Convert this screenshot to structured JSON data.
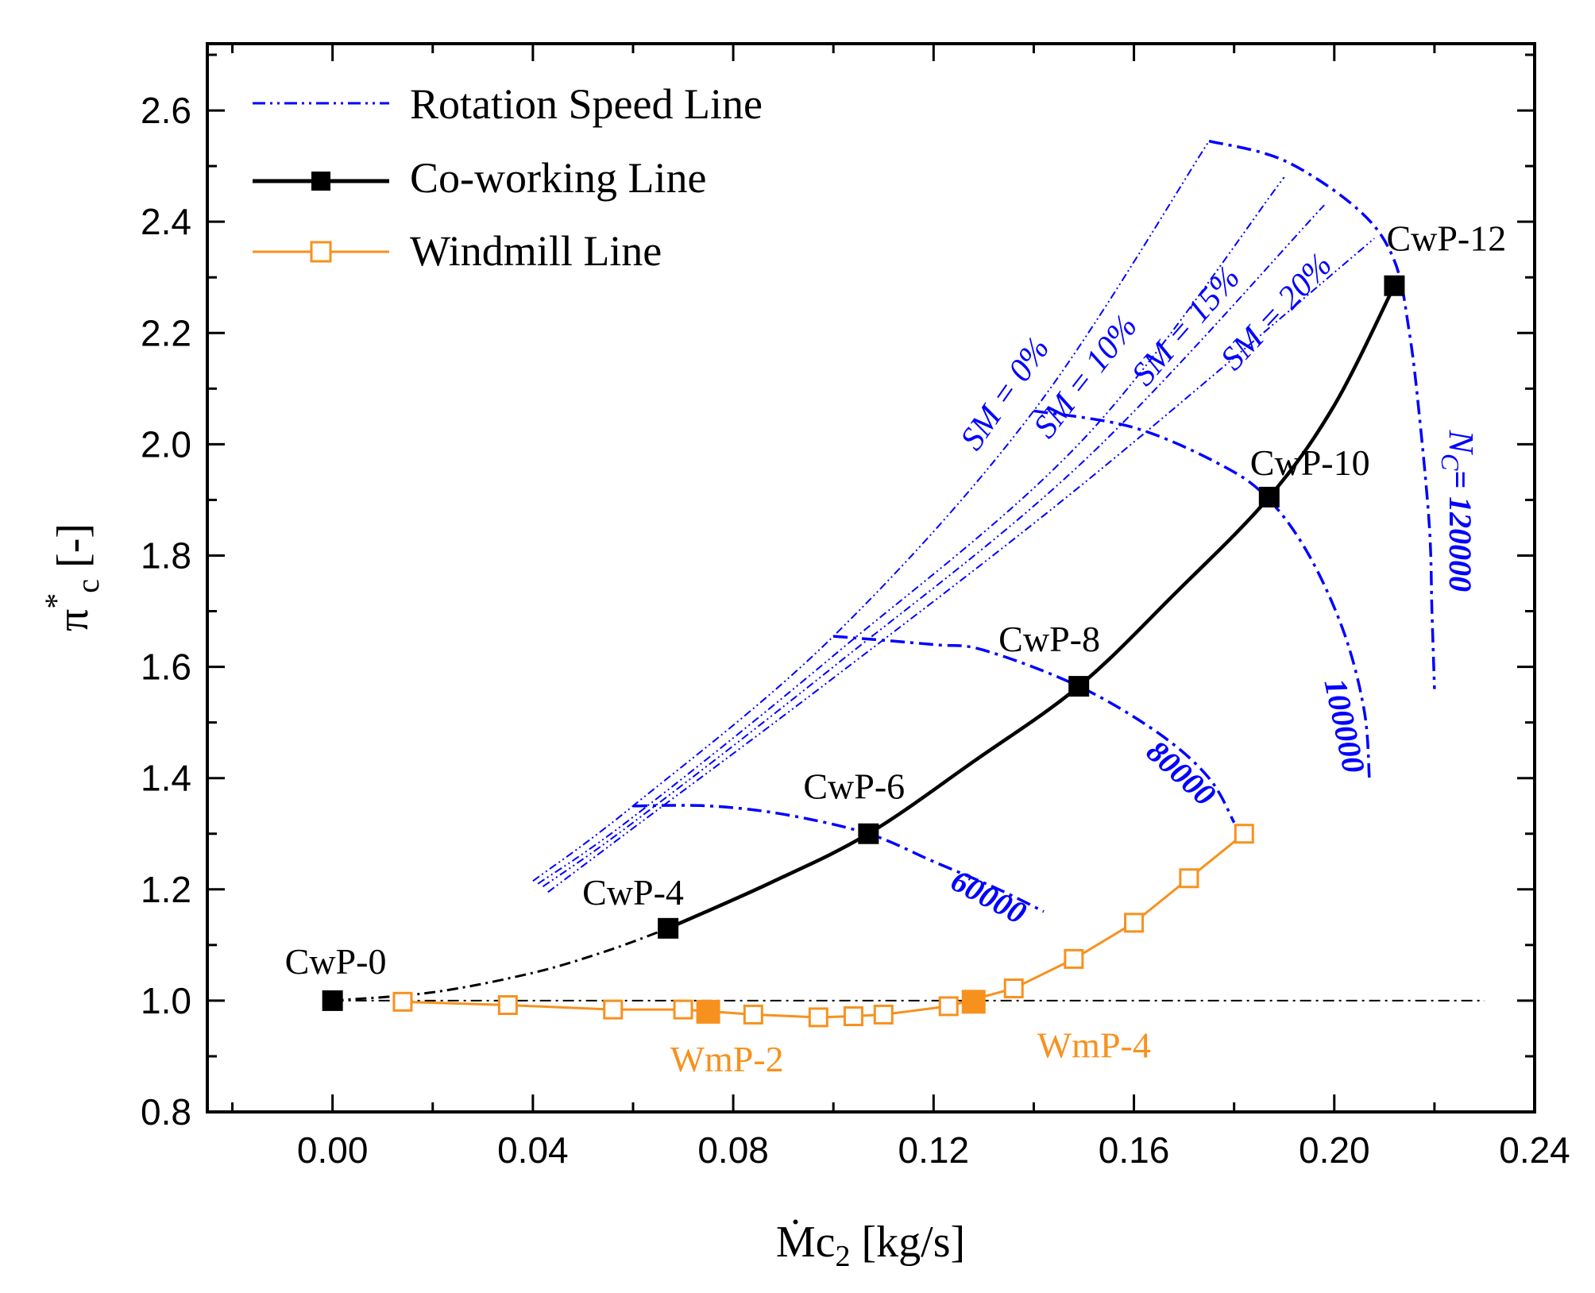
{
  "chart_data": {
    "type": "line",
    "xlabel_main": "Ṁc",
    "xlabel_sub": "2",
    "xlabel_unit": " [kg/s]",
    "ylabel_main": "π",
    "ylabel_sup": "*",
    "ylabel_sub": "c",
    "ylabel_unit": " [-]",
    "xlim": [
      -0.025,
      0.24
    ],
    "ylim": [
      0.8,
      2.72
    ],
    "x_ticks": [
      0.0,
      0.04,
      0.08,
      0.12,
      0.16,
      0.2,
      0.24
    ],
    "x_tick_labels": [
      "0.00",
      "0.04",
      "0.08",
      "0.12",
      "0.16",
      "0.20",
      "0.24"
    ],
    "y_ticks": [
      0.8,
      1.0,
      1.2,
      1.4,
      1.6,
      1.8,
      2.0,
      2.2,
      2.4,
      2.6
    ],
    "y_tick_labels": [
      "0.8",
      "1.0",
      "1.2",
      "1.4",
      "1.6",
      "1.8",
      "2.0",
      "2.2",
      "2.4",
      "2.6"
    ],
    "legend": [
      {
        "label": "Rotation Speed Line",
        "style": "speed"
      },
      {
        "label": "Co-working Line",
        "style": "cowork"
      },
      {
        "label": "Windmill Line",
        "style": "windmill"
      }
    ],
    "colors": {
      "speed": "#0000ff",
      "cowork": "#000000",
      "windmill": "#f7911e"
    },
    "reference_line_y": 1.0,
    "reference_line_x": [
      0.0,
      0.23
    ],
    "speed_lines": [
      {
        "label": "60000",
        "points": [
          [
            0.06,
            1.35
          ],
          [
            0.075,
            1.35
          ],
          [
            0.09,
            1.335
          ],
          [
            0.107,
            1.3
          ],
          [
            0.12,
            1.25
          ],
          [
            0.133,
            1.2
          ],
          [
            0.142,
            1.16
          ]
        ]
      },
      {
        "label": "80000",
        "points": [
          [
            0.1,
            1.655
          ],
          [
            0.12,
            1.64
          ],
          [
            0.13,
            1.63
          ],
          [
            0.149,
            1.565
          ],
          [
            0.165,
            1.48
          ],
          [
            0.175,
            1.4
          ],
          [
            0.18,
            1.32
          ]
        ]
      },
      {
        "label": "100000",
        "points": [
          [
            0.14,
            2.06
          ],
          [
            0.16,
            2.03
          ],
          [
            0.178,
            1.96
          ],
          [
            0.187,
            1.9
          ],
          [
            0.195,
            1.8
          ],
          [
            0.202,
            1.66
          ],
          [
            0.206,
            1.52
          ],
          [
            0.207,
            1.4
          ]
        ]
      },
      {
        "label": "N",
        "label_sub": "C",
        "label_rest": "= 120000",
        "points": [
          [
            0.175,
            2.545
          ],
          [
            0.19,
            2.51
          ],
          [
            0.205,
            2.42
          ],
          [
            0.212,
            2.33
          ],
          [
            0.215,
            2.2
          ],
          [
            0.217,
            2.05
          ],
          [
            0.219,
            1.85
          ],
          [
            0.2195,
            1.7
          ],
          [
            0.22,
            1.56
          ]
        ]
      }
    ],
    "surge_lines": [
      {
        "label": "SM = 0%",
        "points": [
          [
            0.04,
            1.215
          ],
          [
            0.06,
            1.35
          ],
          [
            0.1,
            1.655
          ],
          [
            0.14,
            2.06
          ],
          [
            0.175,
            2.545
          ]
        ]
      },
      {
        "label": "SM = 10%",
        "points": [
          [
            0.041,
            1.21
          ],
          [
            0.06,
            1.33
          ],
          [
            0.1,
            1.62
          ],
          [
            0.15,
            2.01
          ],
          [
            0.19,
            2.48
          ]
        ]
      },
      {
        "label": "SM = 15%",
        "points": [
          [
            0.042,
            1.205
          ],
          [
            0.06,
            1.32
          ],
          [
            0.1,
            1.6
          ],
          [
            0.15,
            1.97
          ],
          [
            0.198,
            2.43
          ]
        ]
      },
      {
        "label": "SM = 20%",
        "points": [
          [
            0.043,
            1.195
          ],
          [
            0.06,
            1.31
          ],
          [
            0.1,
            1.58
          ],
          [
            0.15,
            1.93
          ],
          [
            0.208,
            2.37
          ]
        ]
      }
    ],
    "coworking_line": {
      "dashed_points": [
        [
          0.0,
          1.0
        ],
        [
          0.02,
          1.015
        ],
        [
          0.04,
          1.05
        ],
        [
          0.055,
          1.09
        ],
        [
          0.067,
          1.13
        ]
      ],
      "solid_points": [
        [
          0.067,
          1.13
        ],
        [
          0.087,
          1.21
        ],
        [
          0.107,
          1.3
        ],
        [
          0.128,
          1.43
        ],
        [
          0.149,
          1.565
        ],
        [
          0.168,
          1.73
        ],
        [
          0.187,
          1.905
        ],
        [
          0.2,
          2.07
        ],
        [
          0.212,
          2.285
        ]
      ],
      "markers": [
        {
          "label": "CwP-0",
          "x": 0.0,
          "y": 1.0,
          "anchor": "sw"
        },
        {
          "label": "CwP-4",
          "x": 0.067,
          "y": 1.13,
          "anchor": "nw"
        },
        {
          "label": "CwP-6",
          "x": 0.107,
          "y": 1.3,
          "anchor": "nw"
        },
        {
          "label": "CwP-8",
          "x": 0.149,
          "y": 1.565,
          "anchor": "nw"
        },
        {
          "label": "CwP-10",
          "x": 0.187,
          "y": 1.905,
          "anchor": "n"
        },
        {
          "label": "CwP-12",
          "x": 0.212,
          "y": 2.285,
          "anchor": "n"
        }
      ]
    },
    "windmill_line": {
      "points": [
        [
          0.014,
          0.998
        ],
        [
          0.035,
          0.992
        ],
        [
          0.056,
          0.984
        ],
        [
          0.07,
          0.984
        ],
        [
          0.084,
          0.975
        ],
        [
          0.097,
          0.97
        ],
        [
          0.104,
          0.972
        ],
        [
          0.11,
          0.975
        ],
        [
          0.123,
          0.99
        ],
        [
          0.136,
          1.022
        ],
        [
          0.148,
          1.075
        ],
        [
          0.16,
          1.14
        ],
        [
          0.171,
          1.22
        ],
        [
          0.182,
          1.3
        ]
      ],
      "highlights": [
        {
          "label": "WmP-2",
          "x": 0.075,
          "y": 0.98
        },
        {
          "label": "WmP-4",
          "x": 0.128,
          "y": 0.998
        }
      ]
    }
  }
}
